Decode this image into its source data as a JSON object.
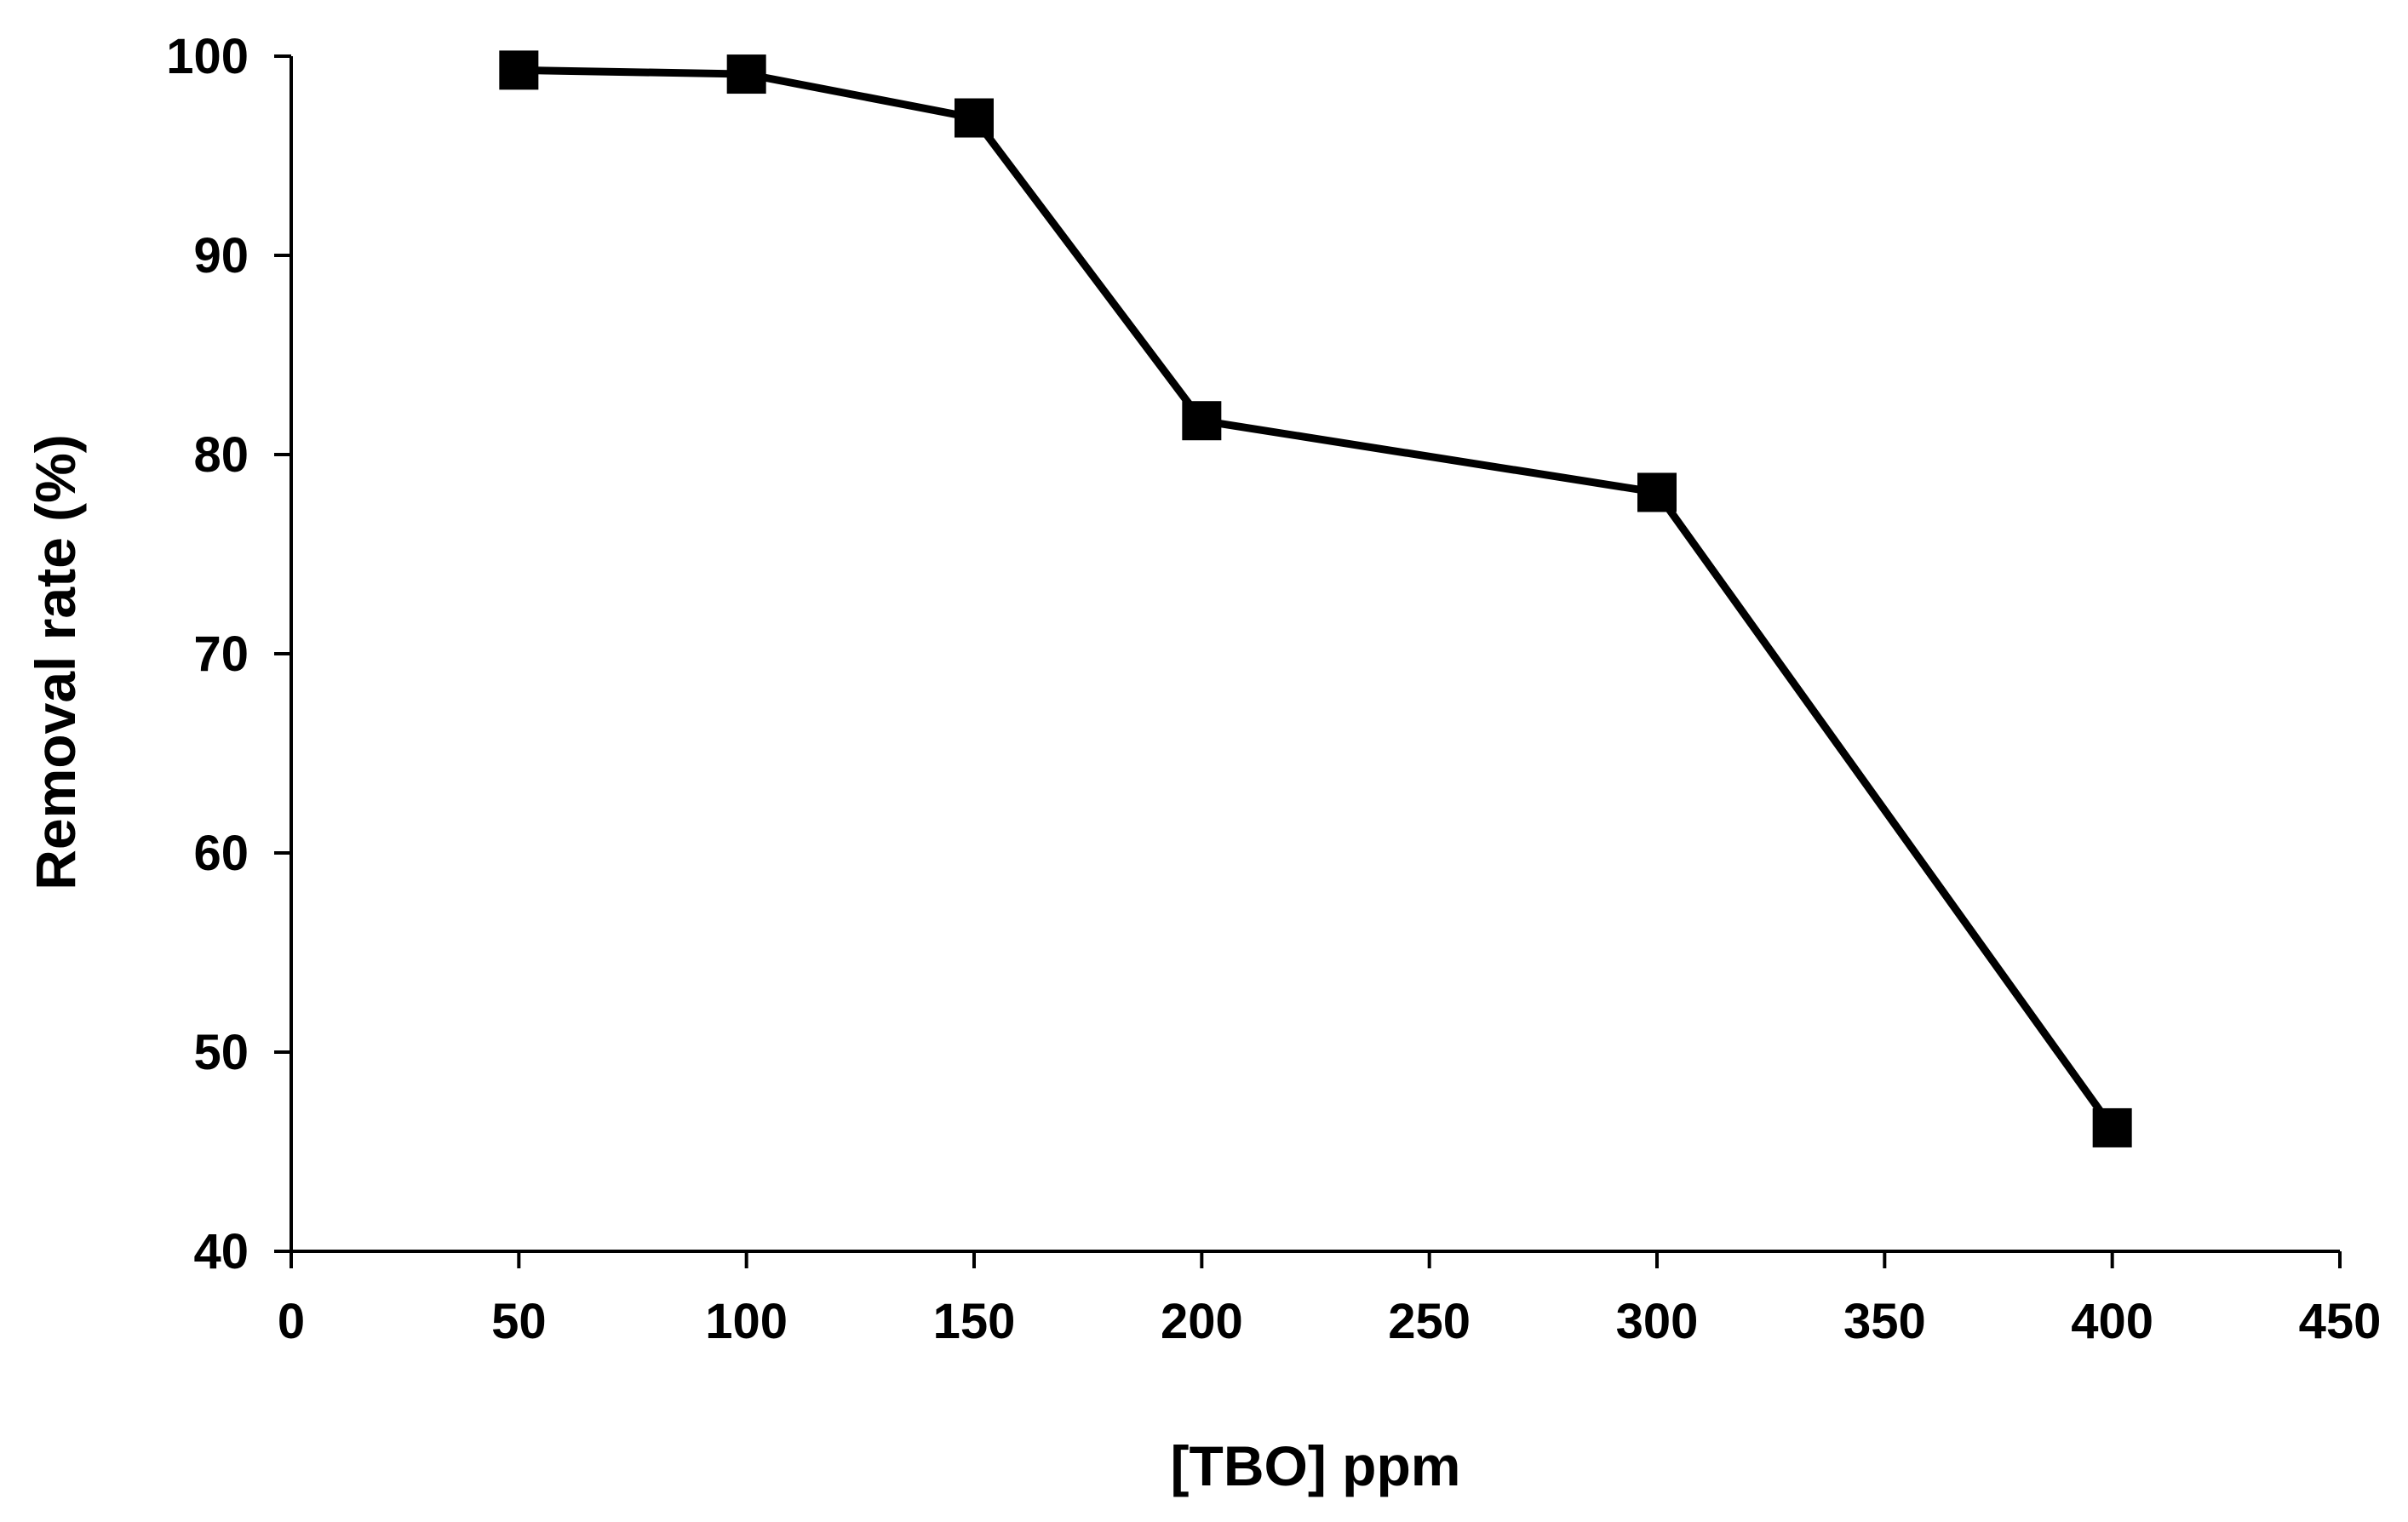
{
  "chart_data": {
    "type": "line",
    "title": "",
    "xlabel": "[TBO] ppm",
    "ylabel": "Removal rate (%)",
    "xlim": [
      0,
      450
    ],
    "ylim": [
      40,
      100
    ],
    "x_ticks": [
      0,
      50,
      100,
      150,
      200,
      250,
      300,
      350,
      400,
      450
    ],
    "y_ticks": [
      40,
      50,
      60,
      70,
      80,
      90,
      100
    ],
    "grid": false,
    "legend": "none",
    "series": [
      {
        "name": "Removal rate",
        "x": [
          50,
          100,
          150,
          200,
          300,
          400
        ],
        "y": [
          99.3,
          99.1,
          96.9,
          81.7,
          78.1,
          46.2
        ],
        "color": "#000000",
        "marker": "square"
      }
    ]
  }
}
